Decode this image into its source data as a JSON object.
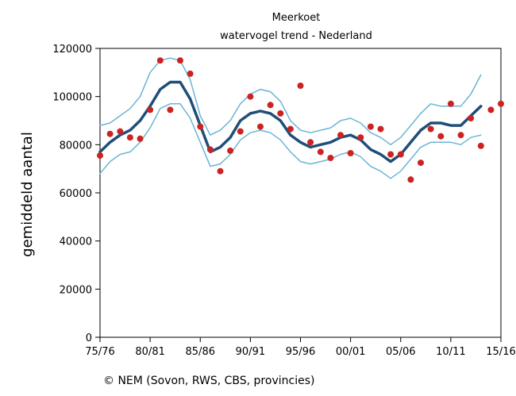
{
  "chart_data": {
    "type": "line",
    "title": "Meerkoet",
    "subtitle": "watervogel trend - Nederland",
    "xlabel": "",
    "ylabel": "gemiddeld aantal",
    "x_tick_labels": [
      "75/76",
      "80/81",
      "85/86",
      "90/91",
      "95/96",
      "00/01",
      "05/06",
      "10/11",
      "15/16"
    ],
    "y_ticks": [
      0,
      20000,
      40000,
      60000,
      80000,
      100000,
      120000
    ],
    "xlim": [
      0,
      40
    ],
    "ylim": [
      0,
      120000
    ],
    "grid": false,
    "colors": {
      "trend": "#1f4e79",
      "confidence": "#6ab4d6",
      "observed": "#cc2222"
    },
    "series": [
      {
        "role": "trend",
        "values": [
          77000,
          81000,
          84000,
          86000,
          90000,
          96000,
          103000,
          106000,
          106000,
          99000,
          88000,
          77000,
          79000,
          83000,
          90000,
          93000,
          94000,
          93000,
          90000,
          84000,
          81000,
          79000,
          80000,
          81000,
          83000,
          84000,
          82000,
          78000,
          76000,
          73000,
          76000,
          81000,
          86000,
          89000,
          89000,
          88000,
          88000,
          92000,
          96000
        ]
      },
      {
        "role": "upper",
        "values": [
          88000,
          89000,
          92000,
          95000,
          100000,
          110000,
          115000,
          116000,
          115000,
          107000,
          92000,
          84000,
          86000,
          90000,
          97000,
          101000,
          103000,
          102000,
          98000,
          90000,
          86000,
          85000,
          86000,
          87000,
          90000,
          91000,
          89000,
          85000,
          83000,
          80000,
          83000,
          88000,
          93000,
          97000,
          96000,
          96000,
          96000,
          101000,
          109000
        ]
      },
      {
        "role": "lower",
        "values": [
          68000,
          73000,
          76000,
          77000,
          81000,
          87000,
          95000,
          97000,
          97000,
          91000,
          81000,
          71000,
          72000,
          76000,
          82000,
          85000,
          86000,
          85000,
          82000,
          77000,
          73000,
          72000,
          73000,
          74000,
          76000,
          77000,
          75000,
          71000,
          69000,
          66000,
          69000,
          74000,
          79000,
          81000,
          81000,
          81000,
          80000,
          83000,
          84000
        ]
      },
      {
        "role": "observed",
        "values": [
          75500,
          84500,
          85500,
          83000,
          82500,
          94500,
          115000,
          94500,
          115000,
          109500,
          87500,
          78000,
          69000,
          77500,
          85500,
          100000,
          87500,
          96500,
          93000,
          86500,
          104500,
          81000,
          77000,
          74500,
          84000,
          76500,
          83000,
          87500,
          86500,
          76000,
          76000,
          65500,
          72500,
          86500,
          83500,
          97000,
          84000,
          91000,
          79500,
          94500,
          97000
        ]
      }
    ]
  },
  "footer": {
    "credit": "© NEM (Sovon, RWS, CBS, provincies)"
  }
}
